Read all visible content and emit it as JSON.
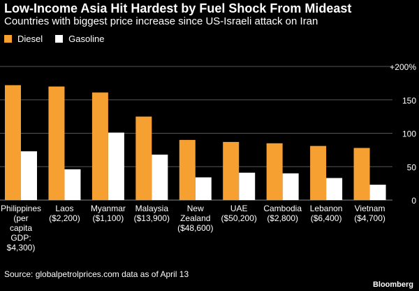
{
  "title": "Low-Income Asia Hit Hardest by Fuel Shock From Mideast",
  "subtitle": "Countries with biggest price increase since US-Israeli attack on Iran",
  "source": "Source: globalpetrolprices.com data as of April 13",
  "brand": "Bloomberg",
  "colors": {
    "diesel": "#F7A032",
    "gasoline": "#FFFFFF",
    "grid": "#555555",
    "background": "#000000"
  },
  "chart_data": {
    "type": "bar",
    "categories": [
      [
        "Philippines",
        "(per",
        "capita",
        "GDP:",
        "$4,300)"
      ],
      [
        "Laos",
        "($2,200)"
      ],
      [
        "Myanmar",
        "($1,100)"
      ],
      [
        "Malaysia",
        "($13,900)"
      ],
      [
        "New",
        "Zealand",
        "($48,600)"
      ],
      [
        "UAE",
        "($50,200)"
      ],
      [
        "Cambodia",
        "($2,800)"
      ],
      [
        "Lebanon",
        "($6,400)"
      ],
      [
        "Vietnam",
        "($4,700)"
      ]
    ],
    "series": [
      {
        "name": "Diesel",
        "values": [
          172,
          170,
          161,
          125,
          90,
          87,
          85,
          81,
          78
        ]
      },
      {
        "name": "Gasoline",
        "values": [
          73,
          46,
          101,
          68,
          34,
          41,
          40,
          33,
          23
        ]
      }
    ],
    "ylim": [
      0,
      200
    ],
    "yticks": [
      0,
      50,
      100,
      150,
      200
    ],
    "ytick_labels": [
      "0",
      "50",
      "100",
      "150",
      "+200%"
    ],
    "grid": true,
    "legend": "top-left"
  }
}
